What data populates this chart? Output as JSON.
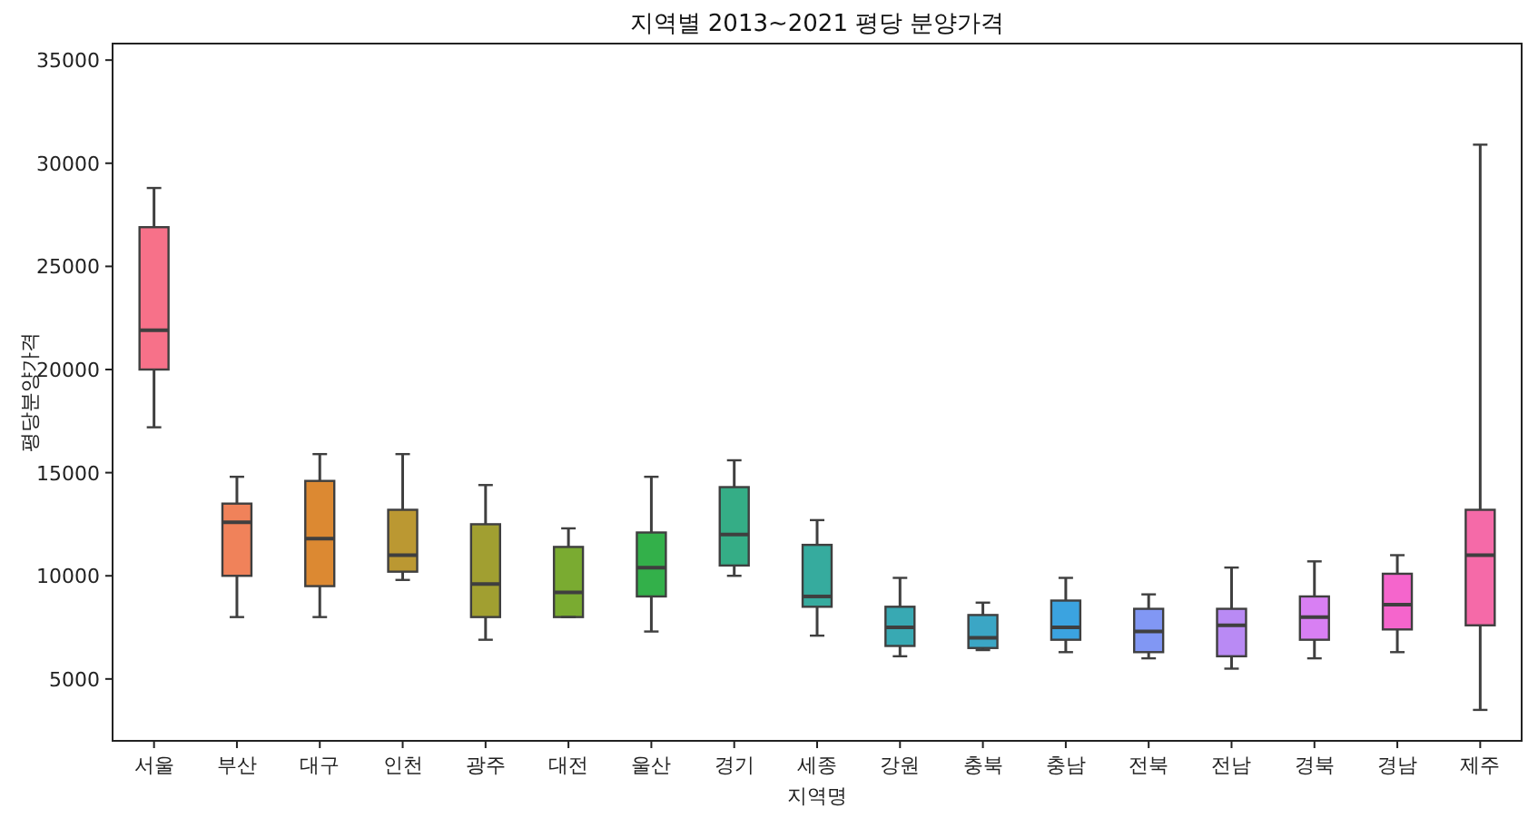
{
  "chart_data": {
    "type": "box",
    "title": "지역별 2013~2021 평당 분양가격",
    "xlabel": "지역명",
    "ylabel": "평당분양가격",
    "categories": [
      "서울",
      "부산",
      "대구",
      "인천",
      "광주",
      "대전",
      "울산",
      "경기",
      "세종",
      "강원",
      "충북",
      "충남",
      "전북",
      "전남",
      "경북",
      "경남",
      "제주"
    ],
    "colors": [
      "#f77189",
      "#f0825a",
      "#dc8932",
      "#bb9832",
      "#a19f31",
      "#7aab31",
      "#33b04a",
      "#35ad86",
      "#36ab9e",
      "#38a9b3",
      "#3ba6c5",
      "#3ba3e0",
      "#8197f4",
      "#b98af4",
      "#d87ff3",
      "#f565cc",
      "#f56aa8"
    ],
    "boxes": [
      {
        "low": 17200,
        "q1": 20000,
        "median": 21900,
        "q3": 26900,
        "high": 28800
      },
      {
        "low": 8000,
        "q1": 10000,
        "median": 12600,
        "q3": 13500,
        "high": 14800
      },
      {
        "low": 8000,
        "q1": 9500,
        "median": 11800,
        "q3": 14600,
        "high": 15900
      },
      {
        "low": 9800,
        "q1": 10200,
        "median": 11000,
        "q3": 13200,
        "high": 15900
      },
      {
        "low": 6900,
        "q1": 8000,
        "median": 9600,
        "q3": 12500,
        "high": 14400
      },
      {
        "low": 8000,
        "q1": 8000,
        "median": 9200,
        "q3": 11400,
        "high": 12300
      },
      {
        "low": 7300,
        "q1": 9000,
        "median": 10400,
        "q3": 12100,
        "high": 14800
      },
      {
        "low": 10000,
        "q1": 10500,
        "median": 12000,
        "q3": 14300,
        "high": 15600
      },
      {
        "low": 7100,
        "q1": 8500,
        "median": 9000,
        "q3": 11500,
        "high": 12700
      },
      {
        "low": 6100,
        "q1": 6600,
        "median": 7500,
        "q3": 8500,
        "high": 9900
      },
      {
        "low": 6400,
        "q1": 6500,
        "median": 7000,
        "q3": 8100,
        "high": 8700
      },
      {
        "low": 6300,
        "q1": 6900,
        "median": 7500,
        "q3": 8800,
        "high": 9900
      },
      {
        "low": 6000,
        "q1": 6300,
        "median": 7300,
        "q3": 8400,
        "high": 9100
      },
      {
        "low": 5500,
        "q1": 6100,
        "median": 7600,
        "q3": 8400,
        "high": 10400
      },
      {
        "low": 6000,
        "q1": 6900,
        "median": 8000,
        "q3": 9000,
        "high": 10700
      },
      {
        "low": 6300,
        "q1": 7400,
        "median": 8600,
        "q3": 10100,
        "high": 11000
      },
      {
        "low": 3500,
        "q1": 7600,
        "median": 11000,
        "q3": 13200,
        "high": 30900
      }
    ],
    "ylim": [
      2000,
      35800
    ],
    "yticks": [
      5000,
      10000,
      15000,
      20000,
      25000,
      30000,
      35000
    ],
    "grid": false
  }
}
